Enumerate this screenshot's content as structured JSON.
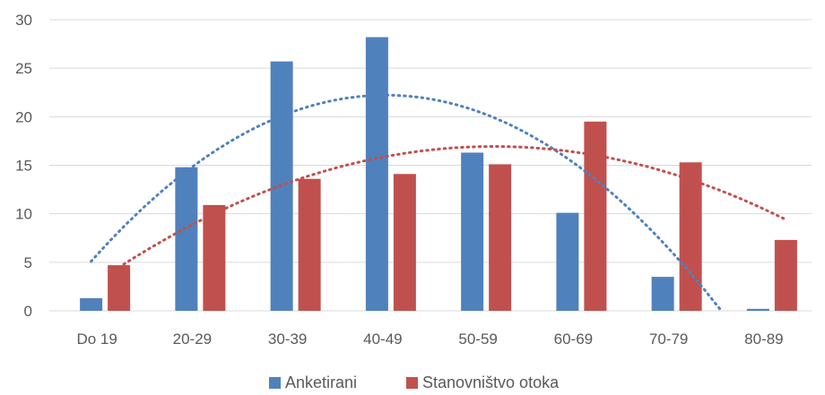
{
  "chart_data": {
    "type": "bar",
    "categories": [
      "Do 19",
      "20-29",
      "30-39",
      "40-49",
      "50-59",
      "60-69",
      "70-79",
      "80-89"
    ],
    "series": [
      {
        "name": "Anketirani",
        "values": [
          1.3,
          14.8,
          25.7,
          28.2,
          16.3,
          10.1,
          3.5,
          0.2
        ],
        "color": "#4F81BD"
      },
      {
        "name": "Stanovništvo otoka",
        "values": [
          4.7,
          10.9,
          13.6,
          14.1,
          15.1,
          19.5,
          15.3,
          7.3
        ],
        "color": "#C0504D"
      }
    ],
    "trendlines": [
      {
        "series": "Anketirani",
        "type": "polynomial",
        "color": "#4F81BD"
      },
      {
        "series": "Stanovništvo otoka",
        "type": "polynomial",
        "color": "#C0504D"
      }
    ],
    "ylim": [
      0,
      30
    ],
    "yticks": [
      "0",
      "5",
      "10",
      "15",
      "20",
      "25",
      "30"
    ],
    "grid": true,
    "legend": "bottom",
    "title": "",
    "xlabel": "",
    "ylabel": ""
  }
}
